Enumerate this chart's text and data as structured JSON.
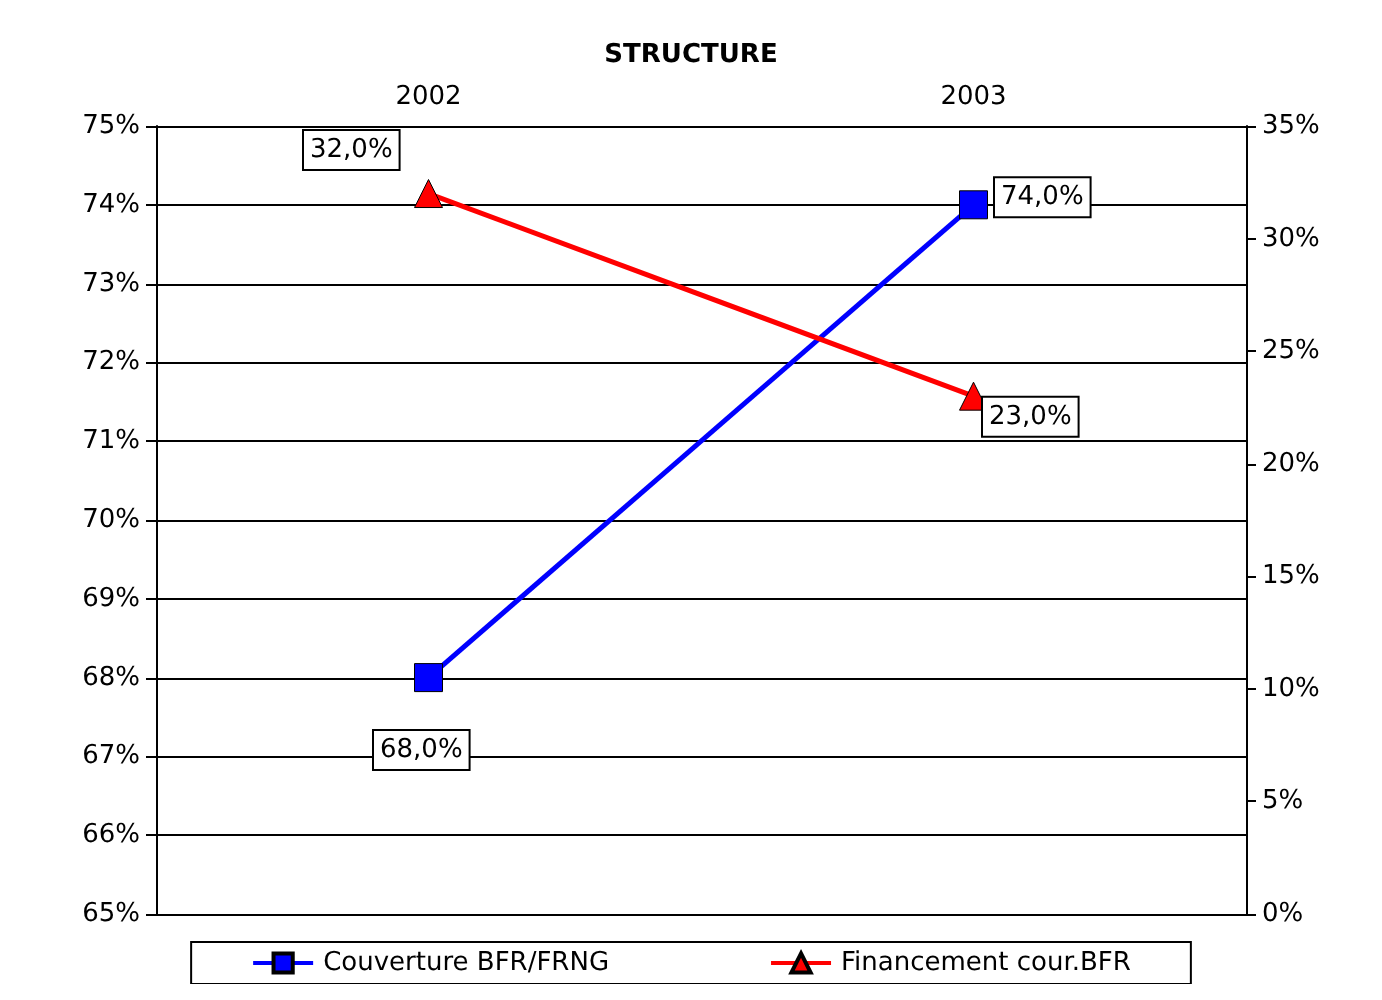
{
  "chart_data": {
    "type": "line",
    "title": "STRUCTURE",
    "categories": [
      "2002",
      "2003"
    ],
    "series": [
      {
        "name": "Couverture BFR/FRNG",
        "color": "#0000ff",
        "values": [
          68,
          74
        ],
        "marker": "square",
        "value_labels": [
          "68,0%",
          "74,0%"
        ]
      },
      {
        "name": "Financement cour.BFR",
        "color": "#ff0000",
        "values": [
          32,
          23
        ],
        "axis": "y2",
        "marker": "triangle",
        "value_labels": [
          "32,0%",
          "23,0%"
        ]
      }
    ],
    "ylim": [
      65,
      75
    ],
    "yticks": [
      {
        "value": 65,
        "label": "65%"
      },
      {
        "value": 66,
        "label": "66%"
      },
      {
        "value": 67,
        "label": "67%"
      },
      {
        "value": 68,
        "label": "68%"
      },
      {
        "value": 69,
        "label": "69%"
      },
      {
        "value": 70,
        "label": "70%"
      },
      {
        "value": 71,
        "label": "71%"
      },
      {
        "value": 72,
        "label": "72%"
      },
      {
        "value": 73,
        "label": "73%"
      },
      {
        "value": 74,
        "label": "74%"
      },
      {
        "value": 75,
        "label": "75%"
      }
    ],
    "y2lim": [
      0,
      35
    ],
    "y2ticks": [
      {
        "value": 0,
        "label": "0%"
      },
      {
        "value": 5,
        "label": "5%"
      },
      {
        "value": 10,
        "label": "10%"
      },
      {
        "value": 15,
        "label": "15%"
      },
      {
        "value": 20,
        "label": "20%"
      },
      {
        "value": 25,
        "label": "25%"
      },
      {
        "value": 30,
        "label": "30%"
      },
      {
        "value": 35,
        "label": "35%"
      }
    ],
    "grid": "y",
    "legend": "bottom"
  }
}
